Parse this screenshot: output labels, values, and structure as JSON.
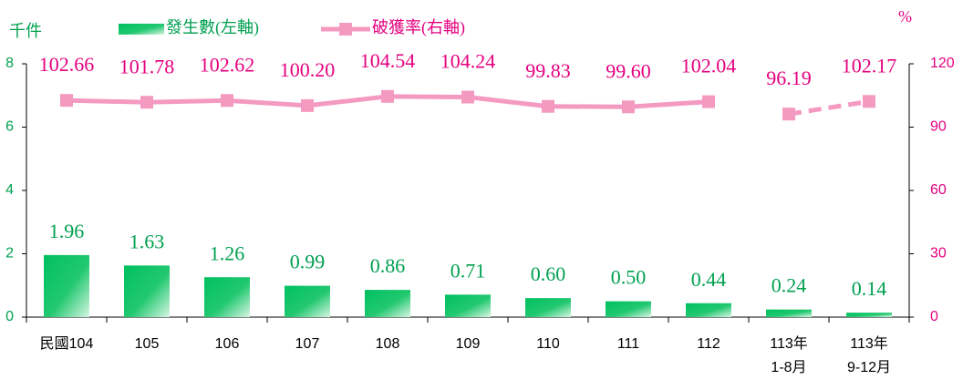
{
  "chart_data": {
    "type": "bar_line",
    "y_axis_label": "千件",
    "y2_axis_label": "%",
    "categories": [
      "民國104",
      "105",
      "106",
      "107",
      "108",
      "109",
      "110",
      "111",
      "112",
      "113年\n1-8月",
      "113年\n9-12月"
    ],
    "series": [
      {
        "name": "發生數(左軸)",
        "type": "bar",
        "color": "#00c060",
        "values": [
          1.96,
          1.63,
          1.26,
          0.99,
          0.86,
          0.71,
          0.6,
          0.5,
          0.44,
          0.24,
          0.14
        ],
        "value_labels": [
          "1.96",
          "1.63",
          "1.26",
          "0.99",
          "0.86",
          "0.71",
          "0.60",
          "0.50",
          "0.44",
          "0.24",
          "0.14"
        ],
        "label_color": "#00a050"
      },
      {
        "name": "破獲率(右軸)",
        "type": "line",
        "axis": "y2",
        "color": "#f49ac1",
        "values": [
          102.66,
          101.78,
          102.62,
          100.2,
          104.54,
          104.24,
          99.83,
          99.6,
          102.04,
          96.19,
          102.17
        ],
        "value_labels": [
          "102.66",
          "101.78",
          "102.62",
          "100.20",
          "104.54",
          "104.24",
          "99.83",
          "99.60",
          "102.04",
          "96.19",
          "102.17"
        ],
        "label_color": "#e4007f",
        "segment_styles": [
          "solid",
          "solid",
          "solid",
          "solid",
          "solid",
          "solid",
          "solid",
          "solid",
          "solid",
          "dashed",
          "dashed"
        ]
      }
    ],
    "ylim": [
      0,
      8
    ],
    "yticks": [
      0,
      2,
      4,
      6,
      8
    ],
    "y2lim": [
      0,
      120
    ],
    "y2ticks": [
      0,
      30,
      60,
      90,
      120
    ]
  }
}
